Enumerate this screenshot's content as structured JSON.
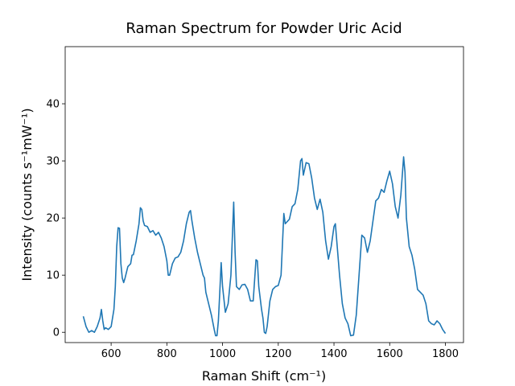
{
  "chart_data": {
    "type": "line",
    "title": "Raman Spectrum for Powder Uric Acid",
    "xlabel": "Raman Shift (cm⁻¹)",
    "ylabel": "Intensity (counts s⁻¹mW⁻¹)",
    "color": "#1f77b4",
    "x": [
      500,
      510,
      520,
      530,
      540,
      550,
      560,
      565,
      570,
      575,
      580,
      590,
      600,
      610,
      615,
      620,
      625,
      630,
      635,
      640,
      645,
      650,
      660,
      670,
      675,
      680,
      690,
      700,
      705,
      710,
      715,
      720,
      730,
      740,
      750,
      760,
      770,
      780,
      790,
      800,
      805,
      810,
      820,
      830,
      840,
      850,
      860,
      870,
      880,
      885,
      890,
      900,
      910,
      920,
      930,
      935,
      940,
      950,
      960,
      970,
      975,
      980,
      985,
      990,
      995,
      1000,
      1010,
      1020,
      1030,
      1040,
      1045,
      1050,
      1060,
      1070,
      1080,
      1090,
      1100,
      1110,
      1120,
      1125,
      1130,
      1140,
      1145,
      1150,
      1155,
      1160,
      1170,
      1180,
      1190,
      1200,
      1210,
      1220,
      1225,
      1240,
      1250,
      1260,
      1270,
      1280,
      1285,
      1290,
      1300,
      1310,
      1320,
      1330,
      1340,
      1350,
      1360,
      1370,
      1380,
      1390,
      1400,
      1405,
      1410,
      1420,
      1430,
      1440,
      1450,
      1460,
      1470,
      1480,
      1490,
      1500,
      1510,
      1520,
      1530,
      1540,
      1550,
      1560,
      1570,
      1580,
      1590,
      1600,
      1610,
      1620,
      1630,
      1640,
      1650,
      1655,
      1660,
      1670,
      1680,
      1690,
      1700,
      1710,
      1720,
      1730,
      1740,
      1750,
      1760,
      1770,
      1780,
      1790,
      1800
    ],
    "values": [
      2.8,
      1.0,
      0.0,
      0.3,
      0.0,
      1.0,
      2.5,
      4.0,
      2.0,
      0.5,
      0.8,
      0.5,
      1.0,
      4,
      8,
      15,
      18.3,
      18.2,
      12,
      9.5,
      8.7,
      9.5,
      11.5,
      12,
      13.5,
      13.6,
      16,
      19,
      21.8,
      21.5,
      19.5,
      18.7,
      18.5,
      17.5,
      17.8,
      17,
      17.5,
      16.5,
      15,
      12.5,
      10,
      10,
      12,
      13,
      13.2,
      14,
      16,
      19,
      21,
      21.3,
      19.5,
      16.5,
      14,
      12,
      10,
      9.5,
      7,
      5,
      3,
      0.5,
      -0.6,
      -0.6,
      2,
      7,
      12.2,
      8,
      3.5,
      5,
      10,
      22.8,
      14,
      8,
      7.5,
      8.3,
      8.4,
      7.5,
      5.5,
      5.5,
      12.7,
      12.5,
      8,
      4,
      2.5,
      0,
      -0.2,
      1,
      5.5,
      7.5,
      8,
      8.2,
      10,
      20.8,
      19,
      19.8,
      22,
      22.5,
      25,
      30,
      30.4,
      27.5,
      29.7,
      29.5,
      27,
      23.5,
      21.5,
      23.3,
      21,
      16,
      12.8,
      15,
      18.5,
      19,
      16,
      10,
      5,
      2.5,
      1.5,
      -0.6,
      -0.5,
      3,
      10,
      17,
      16.5,
      14,
      16,
      19.5,
      23,
      23.5,
      25,
      24.5,
      26.5,
      28.2,
      26,
      22,
      20,
      24,
      30.7,
      28,
      20,
      15,
      13.5,
      11,
      7.5,
      7,
      6.5,
      5,
      2,
      1.5,
      1.3,
      2,
      1.5,
      0.5,
      -0.2
    ],
    "xlim": [
      435,
      1865
    ],
    "ylim": [
      -1.8,
      50
    ],
    "xticks": [
      600,
      800,
      1000,
      1200,
      1400,
      1600,
      1800
    ],
    "yticks": [
      0,
      10,
      20,
      30,
      40
    ]
  }
}
